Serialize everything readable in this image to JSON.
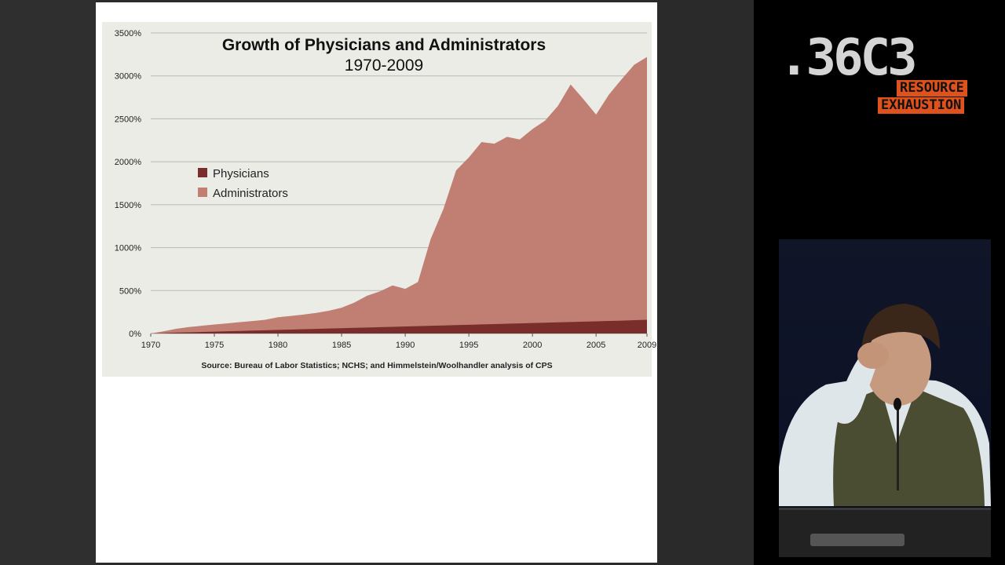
{
  "logo": {
    "main": ".36C3",
    "sub_line1": "RESOURCE",
    "sub_line2": "EXHAUSTION"
  },
  "chart_data": {
    "type": "area",
    "title": "Growth of Physicians and Administrators",
    "subtitle": "1970-2009",
    "source": "Source: Bureau of Labor Statistics; NCHS; and Himmelstein/Woolhandler analysis of CPS",
    "xlim": [
      1970,
      2009
    ],
    "ylim": [
      0,
      3500
    ],
    "x_ticks": [
      "1970",
      "1975",
      "1980",
      "1985",
      "1990",
      "1995",
      "2000",
      "2005",
      "2009"
    ],
    "y_ticks": [
      "0%",
      "500%",
      "1000%",
      "1500%",
      "2000%",
      "2500%",
      "3000%",
      "3500%"
    ],
    "legend_position": "left-center",
    "grid": true,
    "colors": {
      "physicians": "#7a2e2c",
      "administrators": "#c17f74",
      "background": "#ecece7",
      "gridline": "#b8b8b8"
    },
    "x": [
      1970,
      1971,
      1972,
      1973,
      1974,
      1975,
      1976,
      1977,
      1978,
      1979,
      1980,
      1981,
      1982,
      1983,
      1984,
      1985,
      1986,
      1987,
      1988,
      1989,
      1990,
      1991,
      1992,
      1993,
      1994,
      1995,
      1996,
      1997,
      1998,
      1999,
      2000,
      2001,
      2002,
      2003,
      2004,
      2005,
      2006,
      2007,
      2008,
      2009
    ],
    "series": [
      {
        "name": "Physicians",
        "values": [
          0,
          5,
          10,
          14,
          18,
          22,
          26,
          30,
          34,
          38,
          42,
          46,
          50,
          54,
          58,
          62,
          66,
          70,
          74,
          78,
          82,
          86,
          90,
          94,
          98,
          102,
          106,
          110,
          114,
          118,
          122,
          126,
          130,
          134,
          138,
          142,
          146,
          150,
          155,
          160
        ]
      },
      {
        "name": "Administrators",
        "values": [
          0,
          25,
          55,
          75,
          90,
          105,
          118,
          132,
          145,
          160,
          190,
          205,
          220,
          240,
          265,
          300,
          360,
          440,
          490,
          560,
          520,
          600,
          1100,
          1450,
          1900,
          2050,
          2230,
          2210,
          2290,
          2260,
          2380,
          2480,
          2650,
          2900,
          2730,
          2550,
          2780,
          2960,
          3130,
          3220
        ]
      }
    ]
  }
}
